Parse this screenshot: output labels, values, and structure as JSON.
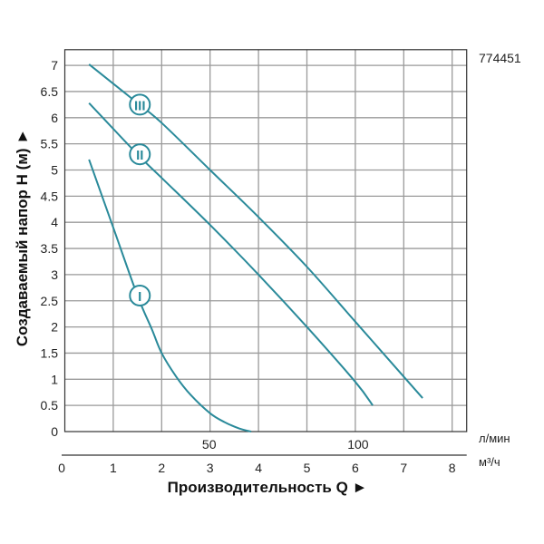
{
  "chart_data": {
    "type": "line",
    "code": "774451",
    "xlabel": "Производительность Q ►",
    "ylabel": "Создаваемый напор H (м) ►",
    "x_unit": "м³/ч",
    "x2_unit": "л/мин",
    "xlim": [
      0,
      8.3
    ],
    "ylim": [
      0,
      7.3
    ],
    "x_ticks": [
      "0",
      "1",
      "2",
      "3",
      "4",
      "5",
      "6",
      "7",
      "8"
    ],
    "y_ticks": [
      "0",
      "0.5",
      "1",
      "1.5",
      "2",
      "2.5",
      "3",
      "3.5",
      "4",
      "4.5",
      "5",
      "5.5",
      "6",
      "6.5",
      "7"
    ],
    "x2_ticks": [
      {
        "label": "50",
        "at": 3
      },
      {
        "label": "100",
        "at": 6
      }
    ],
    "grid": true,
    "line_color": "#2a8a9a",
    "series": [
      {
        "name": "III",
        "label_at": [
          1.55,
          6.25
        ],
        "x": [
          0.5,
          1.5,
          2,
          3,
          4,
          5,
          6,
          7,
          7.39
        ],
        "y": [
          7.02,
          6.28,
          5.9,
          5.0,
          4.1,
          3.15,
          2.1,
          1.05,
          0.64
        ]
      },
      {
        "name": "II",
        "label_at": [
          1.55,
          5.3
        ],
        "x": [
          0.5,
          1.5,
          2,
          3,
          4,
          5,
          6,
          6.36
        ],
        "y": [
          6.28,
          5.3,
          4.85,
          3.95,
          3.0,
          2.0,
          0.95,
          0.5
        ]
      },
      {
        "name": "I",
        "label_at": [
          1.55,
          2.6
        ],
        "x": [
          0.5,
          1,
          1.5,
          1.8,
          2,
          2.3,
          2.6,
          3,
          3.3,
          3.6,
          3.85
        ],
        "y": [
          5.2,
          3.9,
          2.6,
          1.95,
          1.5,
          1.05,
          0.7,
          0.35,
          0.18,
          0.06,
          0
        ]
      }
    ]
  }
}
